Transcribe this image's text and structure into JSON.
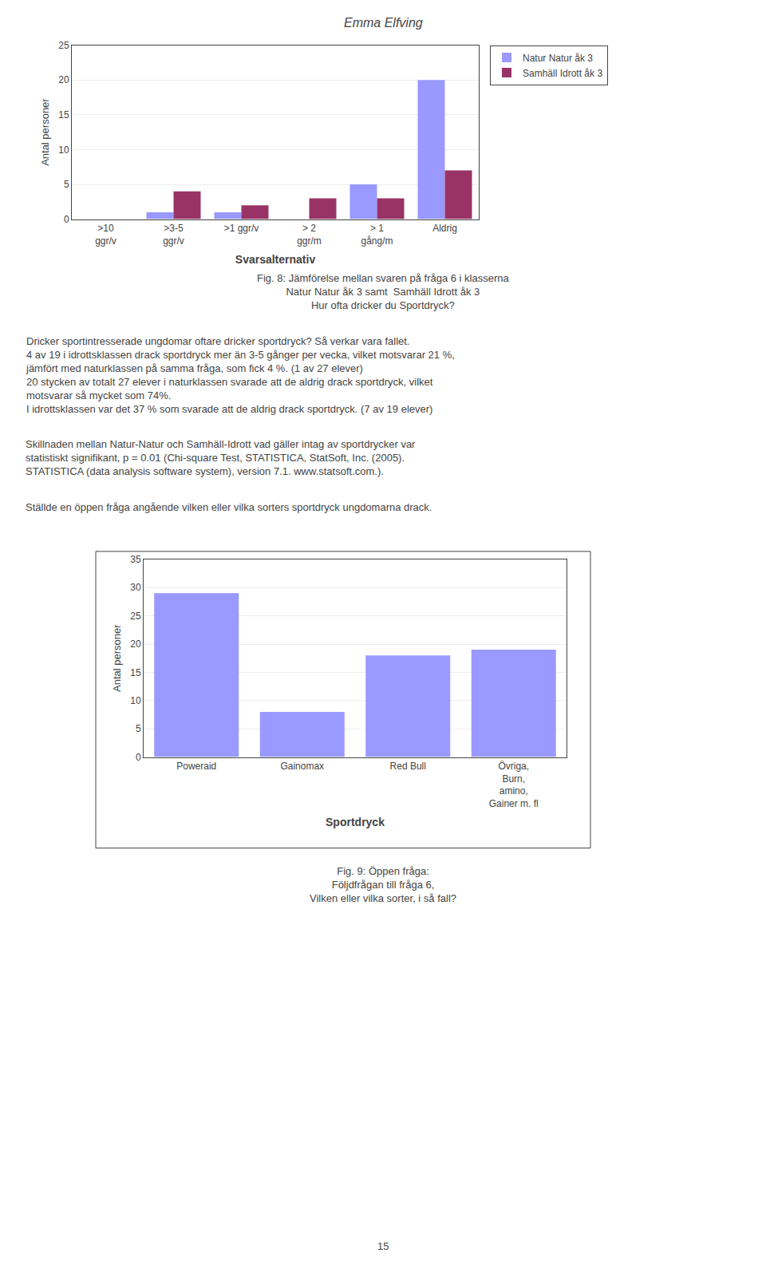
{
  "title": "Emma Elfving",
  "annotations": [
    "15"
  ],
  "chart_data": [
    {
      "type": "bar",
      "categories": [
        ">10\nggr/v",
        ">3-5\nggr/v",
        ">1 ggr/v",
        "> 2\nggr/m",
        "> 1\ngång/m",
        "Aldrig"
      ],
      "series": [
        {
          "name": "Natur Natur åk 3",
          "color": "#9999ff",
          "values": [
            0,
            1,
            1,
            0,
            5,
            20
          ]
        },
        {
          "name": "Samhäll Idrott åk 3",
          "color": "#993366",
          "values": [
            0,
            4,
            2,
            3,
            3,
            7
          ]
        }
      ],
      "xlabel": "Svarsalternativ",
      "ylabel": "Antal personer",
      "ylim": [
        0,
        25
      ],
      "yticks": [
        0,
        5,
        10,
        15,
        20,
        25
      ],
      "grid": true,
      "legend": "right",
      "annotations": [
        "Fig. 8: Jämförelse mellan svaren på fråga 6 i klasserna\nNatur Natur åk 3 samt  Samhäll Idrott åk 3\nHur ofta dricker du Sportdryck?",
        "Dricker sportintresserade ungdomar oftare dricker sportdryck? Så verkar vara fallet.\n4 av 19 i idrottsklassen drack sportdryck mer än 3-5 gånger per vecka, vilket motsvarar 21 %,\njämfört med naturklassen på samma fråga, som fick 4 %. (1 av 27 elever)\n20 stycken av totalt 27 elever i naturklassen svarade att de aldrig drack sportdryck, vilket\nmotsvarar så mycket som 74%.\nI idrottsklassen var det 37 % som svarade att de aldrig drack sportdryck. (7 av 19 elever)",
        "Skillnaden mellan Natur-Natur och Samhäll-Idrott vad gäller intag av sportdrycker var\nstatistiskt signifikant, p = 0.01 (Chi-square Test, STATISTICA, StatSoft, Inc. (2005).\nSTATISTICA (data analysis software system), version 7.1. www.statsoft.com.).",
        "Ställde en öppen fråga angående vilken eller vilka sorters sportdryck ungdomarna drack."
      ]
    },
    {
      "type": "bar",
      "categories": [
        "Poweraid",
        "Gainomax",
        "Red Bull",
        "Övriga,\nBurn,\namino,\nGainer m. fl"
      ],
      "values": [
        29,
        8,
        18,
        19
      ],
      "color": "#9999ff",
      "xlabel": "Sportdryck",
      "ylabel": "Antal personer",
      "ylim": [
        0,
        35
      ],
      "yticks": [
        0,
        5,
        10,
        15,
        20,
        25,
        30,
        35
      ],
      "grid": true,
      "annotations": [
        "Fig. 9: Öppen fråga:\nFöljdfrågan till fråga 6,\nVilken eller vilka sorter, i så fall?"
      ]
    }
  ]
}
